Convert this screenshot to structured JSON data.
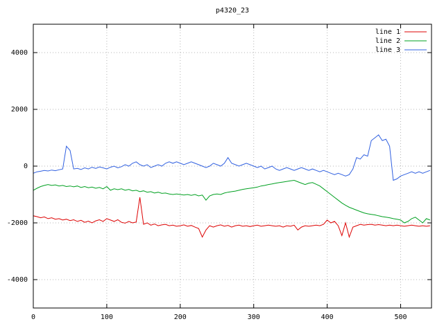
{
  "chart_data": {
    "type": "line",
    "title": "p4320_23",
    "xlabel": "",
    "ylabel": "",
    "xlim": [
      0,
      542
    ],
    "ylim": [
      -5000,
      5000
    ],
    "xticks": [
      0,
      100,
      200,
      300,
      400,
      500
    ],
    "yticks": [
      -4000,
      -2000,
      0,
      2000,
      4000
    ],
    "grid": true,
    "grid_style": "dotted",
    "legend_position": "top-right-inside",
    "border_color": "#000000",
    "grid_color": "#b4b4b4",
    "x_start": 0,
    "x_step": 5,
    "series": [
      {
        "name": "line 1",
        "color": "#dd0000",
        "values": [
          -1750,
          -1780,
          -1820,
          -1790,
          -1850,
          -1820,
          -1870,
          -1850,
          -1900,
          -1870,
          -1920,
          -1890,
          -1950,
          -1910,
          -1980,
          -1940,
          -2000,
          -1930,
          -1890,
          -1950,
          -1850,
          -1900,
          -1950,
          -1890,
          -1980,
          -2010,
          -1950,
          -2000,
          -1970,
          -1100,
          -2050,
          -2000,
          -2080,
          -2040,
          -2100,
          -2070,
          -2050,
          -2100,
          -2080,
          -2120,
          -2100,
          -2070,
          -2120,
          -2090,
          -2150,
          -2200,
          -2500,
          -2250,
          -2100,
          -2150,
          -2100,
          -2070,
          -2120,
          -2090,
          -2150,
          -2100,
          -2080,
          -2120,
          -2100,
          -2130,
          -2100,
          -2080,
          -2120,
          -2100,
          -2080,
          -2100,
          -2120,
          -2100,
          -2150,
          -2100,
          -2120,
          -2080,
          -2250,
          -2150,
          -2100,
          -2120,
          -2100,
          -2080,
          -2100,
          -2050,
          -1900,
          -2000,
          -1950,
          -2100,
          -2450,
          -2000,
          -2500,
          -2150,
          -2100,
          -2050,
          -2080,
          -2060,
          -2050,
          -2080,
          -2060,
          -2080,
          -2100,
          -2080,
          -2100,
          -2080,
          -2100,
          -2120,
          -2100,
          -2080,
          -2100,
          -2120,
          -2100,
          -2120,
          -2100
        ]
      },
      {
        "name": "line 2",
        "color": "#00a020",
        "values": [
          -850,
          -780,
          -720,
          -680,
          -650,
          -680,
          -660,
          -700,
          -680,
          -720,
          -700,
          -730,
          -700,
          -750,
          -720,
          -760,
          -740,
          -780,
          -750,
          -800,
          -720,
          -850,
          -800,
          -830,
          -800,
          -850,
          -820,
          -870,
          -850,
          -900,
          -870,
          -920,
          -900,
          -950,
          -920,
          -960,
          -950,
          -980,
          -1000,
          -980,
          -1000,
          -1020,
          -1000,
          -1030,
          -1000,
          -1050,
          -1020,
          -1200,
          -1050,
          -1000,
          -980,
          -1000,
          -950,
          -920,
          -900,
          -880,
          -850,
          -820,
          -800,
          -780,
          -760,
          -740,
          -700,
          -680,
          -650,
          -630,
          -600,
          -580,
          -560,
          -540,
          -520,
          -500,
          -550,
          -600,
          -650,
          -600,
          -580,
          -640,
          -700,
          -800,
          -900,
          -1000,
          -1100,
          -1200,
          -1300,
          -1380,
          -1450,
          -1500,
          -1550,
          -1600,
          -1650,
          -1680,
          -1700,
          -1720,
          -1750,
          -1780,
          -1800,
          -1820,
          -1850,
          -1870,
          -1900,
          -2000,
          -1950,
          -1850,
          -1800,
          -1900,
          -2000,
          -1850,
          -1900
        ]
      },
      {
        "name": "line 3",
        "color": "#3060e0",
        "values": [
          -250,
          -200,
          -180,
          -150,
          -170,
          -140,
          -160,
          -130,
          -100,
          700,
          550,
          -100,
          -80,
          -120,
          -60,
          -100,
          -40,
          -80,
          -30,
          -60,
          -100,
          -40,
          0,
          -60,
          -20,
          50,
          0,
          100,
          150,
          50,
          0,
          50,
          -50,
          0,
          50,
          0,
          100,
          150,
          100,
          150,
          100,
          50,
          100,
          150,
          100,
          50,
          0,
          -50,
          0,
          100,
          50,
          0,
          100,
          300,
          100,
          50,
          0,
          50,
          100,
          50,
          0,
          -50,
          0,
          -100,
          -50,
          0,
          -100,
          -150,
          -100,
          -50,
          -100,
          -150,
          -100,
          -50,
          -100,
          -150,
          -100,
          -150,
          -200,
          -150,
          -200,
          -250,
          -300,
          -250,
          -300,
          -350,
          -300,
          -100,
          300,
          250,
          400,
          350,
          900,
          1000,
          1100,
          900,
          950,
          700,
          -500,
          -450,
          -350,
          -300,
          -250,
          -200,
          -250,
          -200,
          -250,
          -200,
          -150
        ]
      }
    ]
  }
}
